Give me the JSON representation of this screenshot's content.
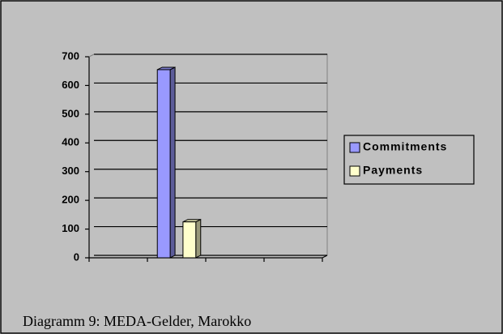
{
  "chart_data": {
    "type": "bar3d",
    "caption": "Diagramm 9: MEDA-Gelder, Marokko",
    "categories": [
      null,
      null,
      null,
      null
    ],
    "series": [
      {
        "name": "Commitments",
        "color": "#9999ff",
        "values": [
          null,
          655,
          null,
          null
        ]
      },
      {
        "name": "Payments",
        "color": "#ffffcc",
        "values": [
          null,
          125,
          null,
          null
        ]
      }
    ],
    "ylim": [
      0,
      700
    ],
    "yticks": [
      0,
      100,
      200,
      300,
      400,
      500,
      600,
      700
    ],
    "grid": true,
    "legend": "right"
  }
}
